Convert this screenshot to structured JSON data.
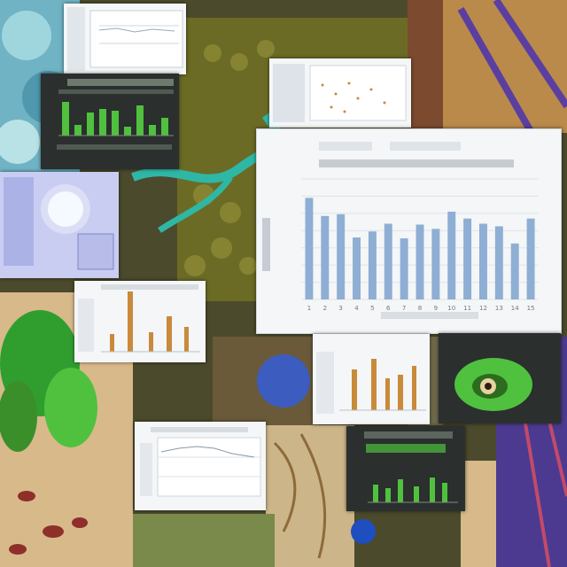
{
  "scene": {
    "description_free": true
  },
  "main_chart": {
    "chart_data": {
      "type": "bar",
      "categories": [
        "1",
        "2",
        "3",
        "4",
        "5",
        "6",
        "7",
        "8",
        "9",
        "10",
        "11",
        "12",
        "13",
        "14",
        "15"
      ],
      "values": [
        118,
        97,
        99,
        72,
        79,
        88,
        71,
        87,
        82,
        102,
        94,
        88,
        85,
        65,
        94
      ],
      "ylim": [
        0,
        140
      ],
      "grid": true,
      "bar_color": "#8eaed4"
    }
  },
  "colors": {
    "panel_bg": "#f4f6f7",
    "dark_panel_bg": "#2b2f2e",
    "green_bar": "#4fc13e",
    "orange_bar": "#c98a3a",
    "blue_bar": "#8eaed4"
  }
}
